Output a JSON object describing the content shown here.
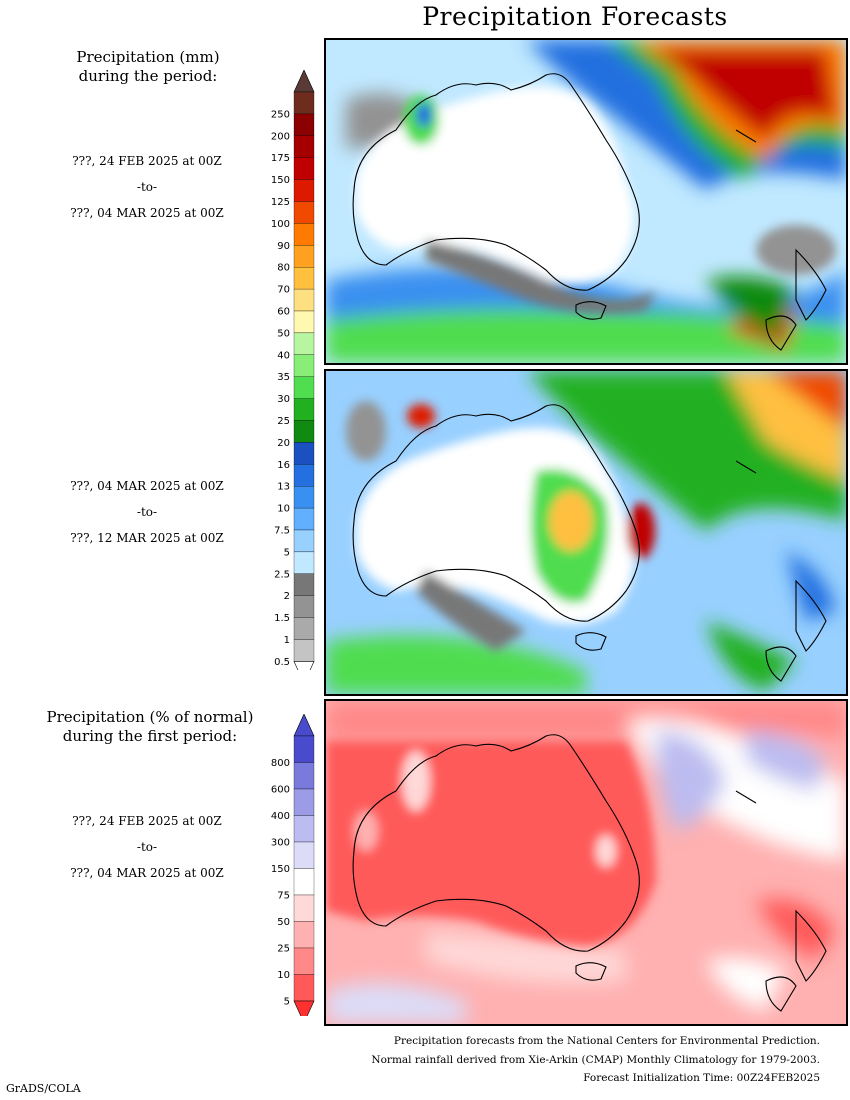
{
  "title": "Precipitation Forecasts",
  "amount_heading": [
    "Precipitation (mm)",
    "during the period:"
  ],
  "percent_heading": [
    "Precipitation (% of normal)",
    "during the first period:"
  ],
  "periods": [
    {
      "start": "???, 24 FEB 2025 at 00Z",
      "sep": "-to-",
      "end": "???, 04 MAR 2025 at 00Z"
    },
    {
      "start": "???, 04 MAR 2025 at 00Z",
      "sep": "-to-",
      "end": "???, 12 MAR 2025 at 00Z"
    },
    {
      "start": "???, 24 FEB 2025 at 00Z",
      "sep": "-to-",
      "end": "???, 04 MAR 2025 at 00Z"
    }
  ],
  "amount_scale": {
    "labels": [
      "250",
      "200",
      "175",
      "150",
      "125",
      "100",
      "90",
      "80",
      "70",
      "60",
      "50",
      "40",
      "35",
      "30",
      "25",
      "20",
      "16",
      "13",
      "10",
      "7.5",
      "5",
      "2.5",
      "2",
      "1.5",
      "1",
      "0.5"
    ],
    "colors": [
      "#6e2c1e",
      "#8b0000",
      "#a50000",
      "#c00000",
      "#dd1a00",
      "#f04a00",
      "#ff7a00",
      "#ffa020",
      "#ffc040",
      "#ffe080",
      "#fff8b0",
      "#b8f5a0",
      "#88ee78",
      "#50dd50",
      "#20b020",
      "#108a10",
      "#1a50c0",
      "#2470e0",
      "#3a90f0",
      "#60b0ff",
      "#98d0ff",
      "#c0e8ff",
      "#777777",
      "#939393",
      "#aaaaaa",
      "#c4c4c4"
    ]
  },
  "percent_scale": {
    "labels": [
      "800",
      "600",
      "400",
      "300",
      "150",
      "75",
      "50",
      "25",
      "10",
      "5"
    ],
    "colors": [
      "#4a4acc",
      "#7a7adc",
      "#9c9ce6",
      "#bcbcf0",
      "#dcdcf8",
      "#ffffff",
      "#ffd8d8",
      "#ffb0b0",
      "#ff8888",
      "#ff5a5a"
    ]
  },
  "footer": [
    "Precipitation forecasts from the National Centers for Environmental Prediction.",
    "Normal rainfall derived from Xie-Arkin (CMAP) Monthly Climatology for 1979-2003.",
    "Forecast Initialization Time: 00Z24FEB2025"
  ],
  "credit": "GrADS/COLA"
}
